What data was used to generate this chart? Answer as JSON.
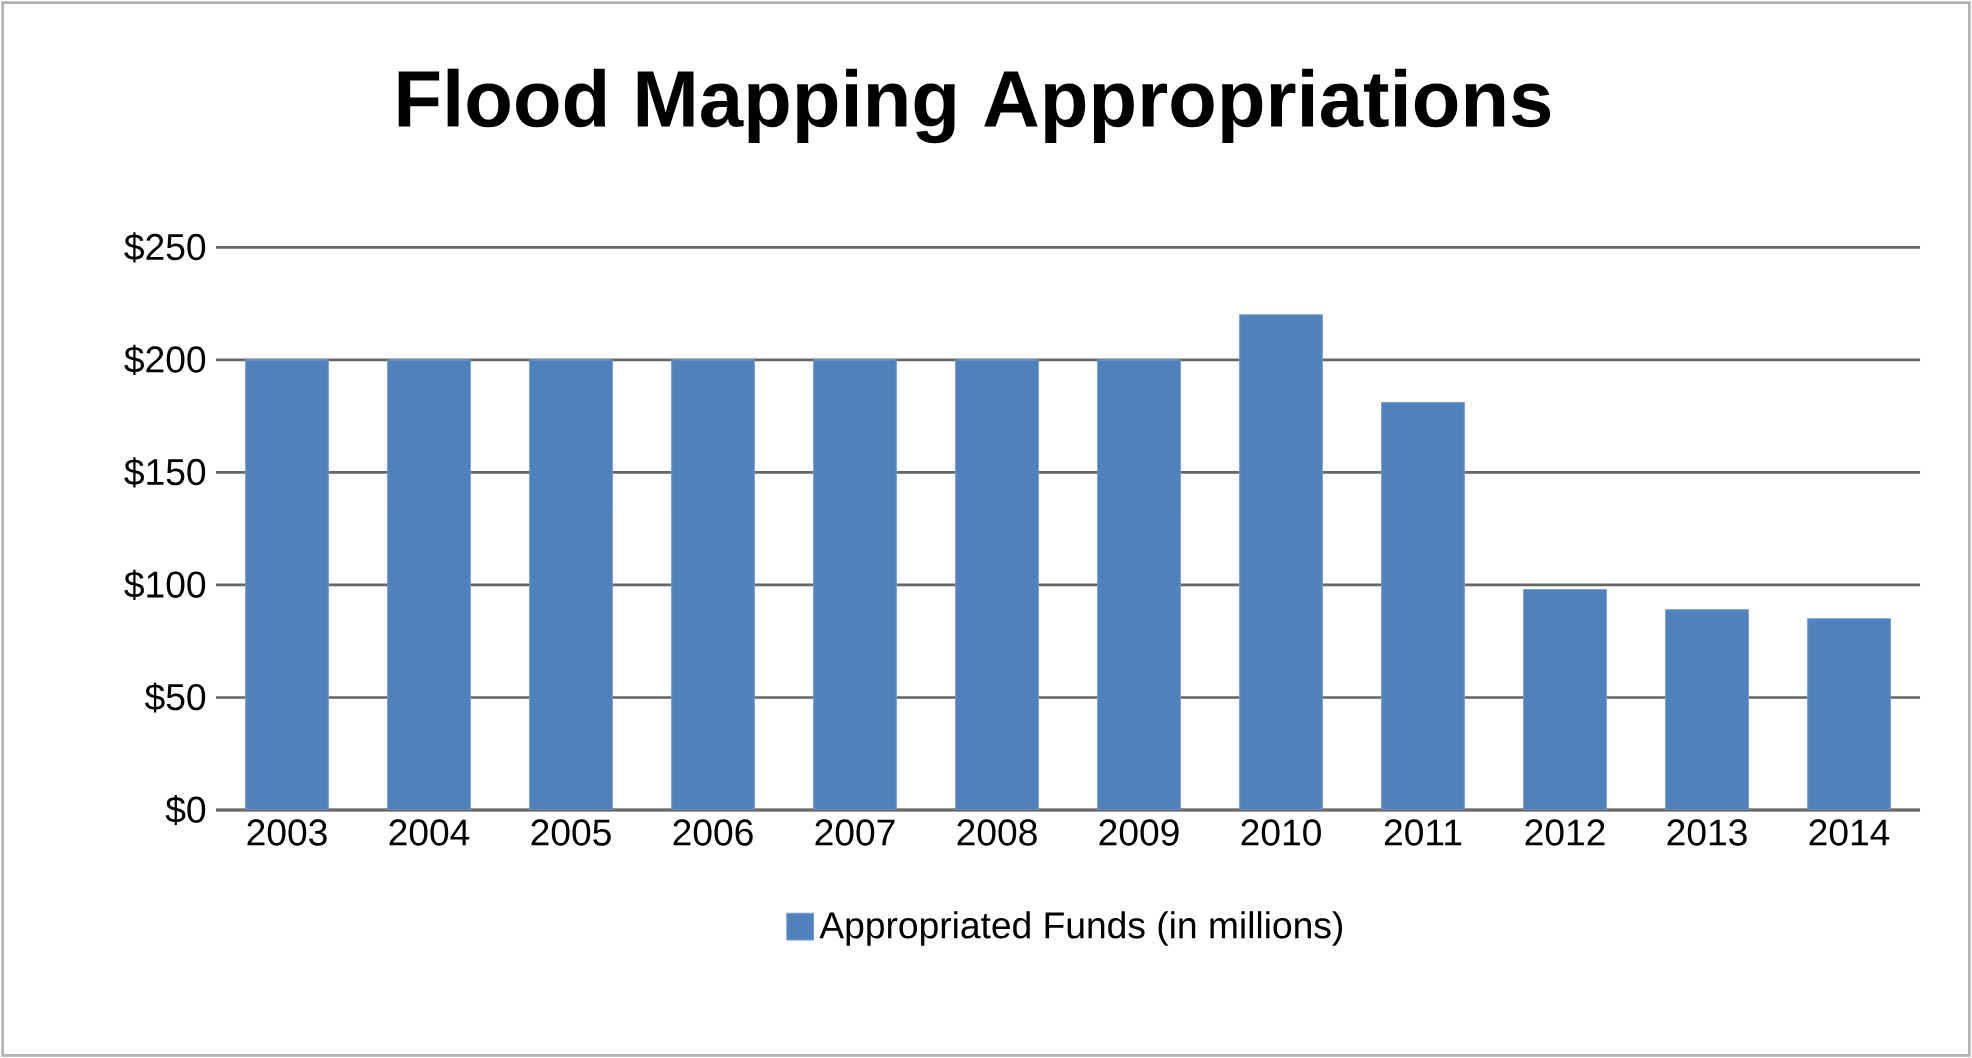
{
  "chart_data": {
    "type": "bar",
    "title": "Flood Mapping Appropriations",
    "categories": [
      "2003",
      "2004",
      "2005",
      "2006",
      "2007",
      "2008",
      "2009",
      "2010",
      "2011",
      "2012",
      "2013",
      "2014"
    ],
    "series": [
      {
        "name": "Appropriated Funds (in millions)",
        "color": "#4f81bd",
        "values": [
          200,
          200,
          200,
          200,
          200,
          200,
          200,
          220,
          181,
          98,
          89,
          85
        ]
      }
    ],
    "ylim": [
      0,
      250
    ],
    "yticks": [
      {
        "value": 0,
        "label": "$0"
      },
      {
        "value": 50,
        "label": "$50"
      },
      {
        "value": 100,
        "label": "$100"
      },
      {
        "value": 150,
        "label": "$150"
      },
      {
        "value": 200,
        "label": "$200"
      },
      {
        "value": 250,
        "label": "$250"
      }
    ],
    "grid": "y",
    "legend": "bottom"
  }
}
